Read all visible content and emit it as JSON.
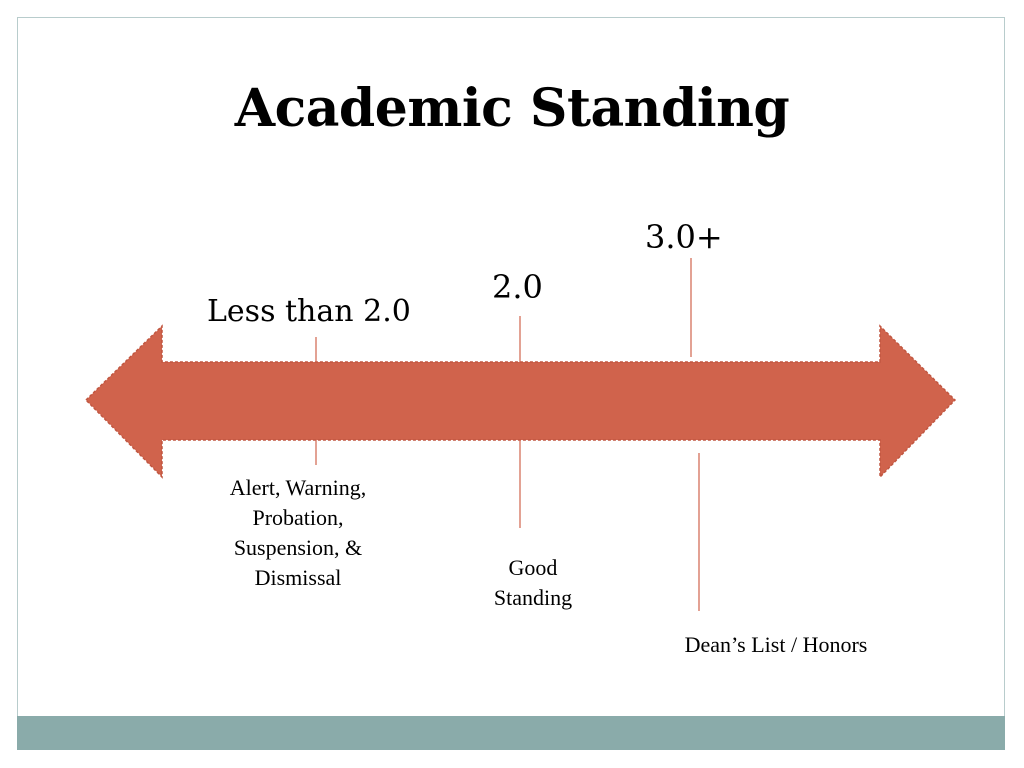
{
  "title": "Academic Standing",
  "colors": {
    "arrow": "#d0634c",
    "marker_line": "#d0634c",
    "footer": "#8aabaa",
    "frame": "#b8cccc"
  },
  "markers": [
    {
      "gpa": "Less than 2.0",
      "description": [
        "Alert, Warning,",
        "Probation,",
        "Suspension, &",
        "Dismissal"
      ]
    },
    {
      "gpa": "2.0",
      "description": [
        "Good",
        "Standing"
      ]
    },
    {
      "gpa": "3.0+",
      "description": [
        "Dean’s List / Honors"
      ]
    }
  ]
}
